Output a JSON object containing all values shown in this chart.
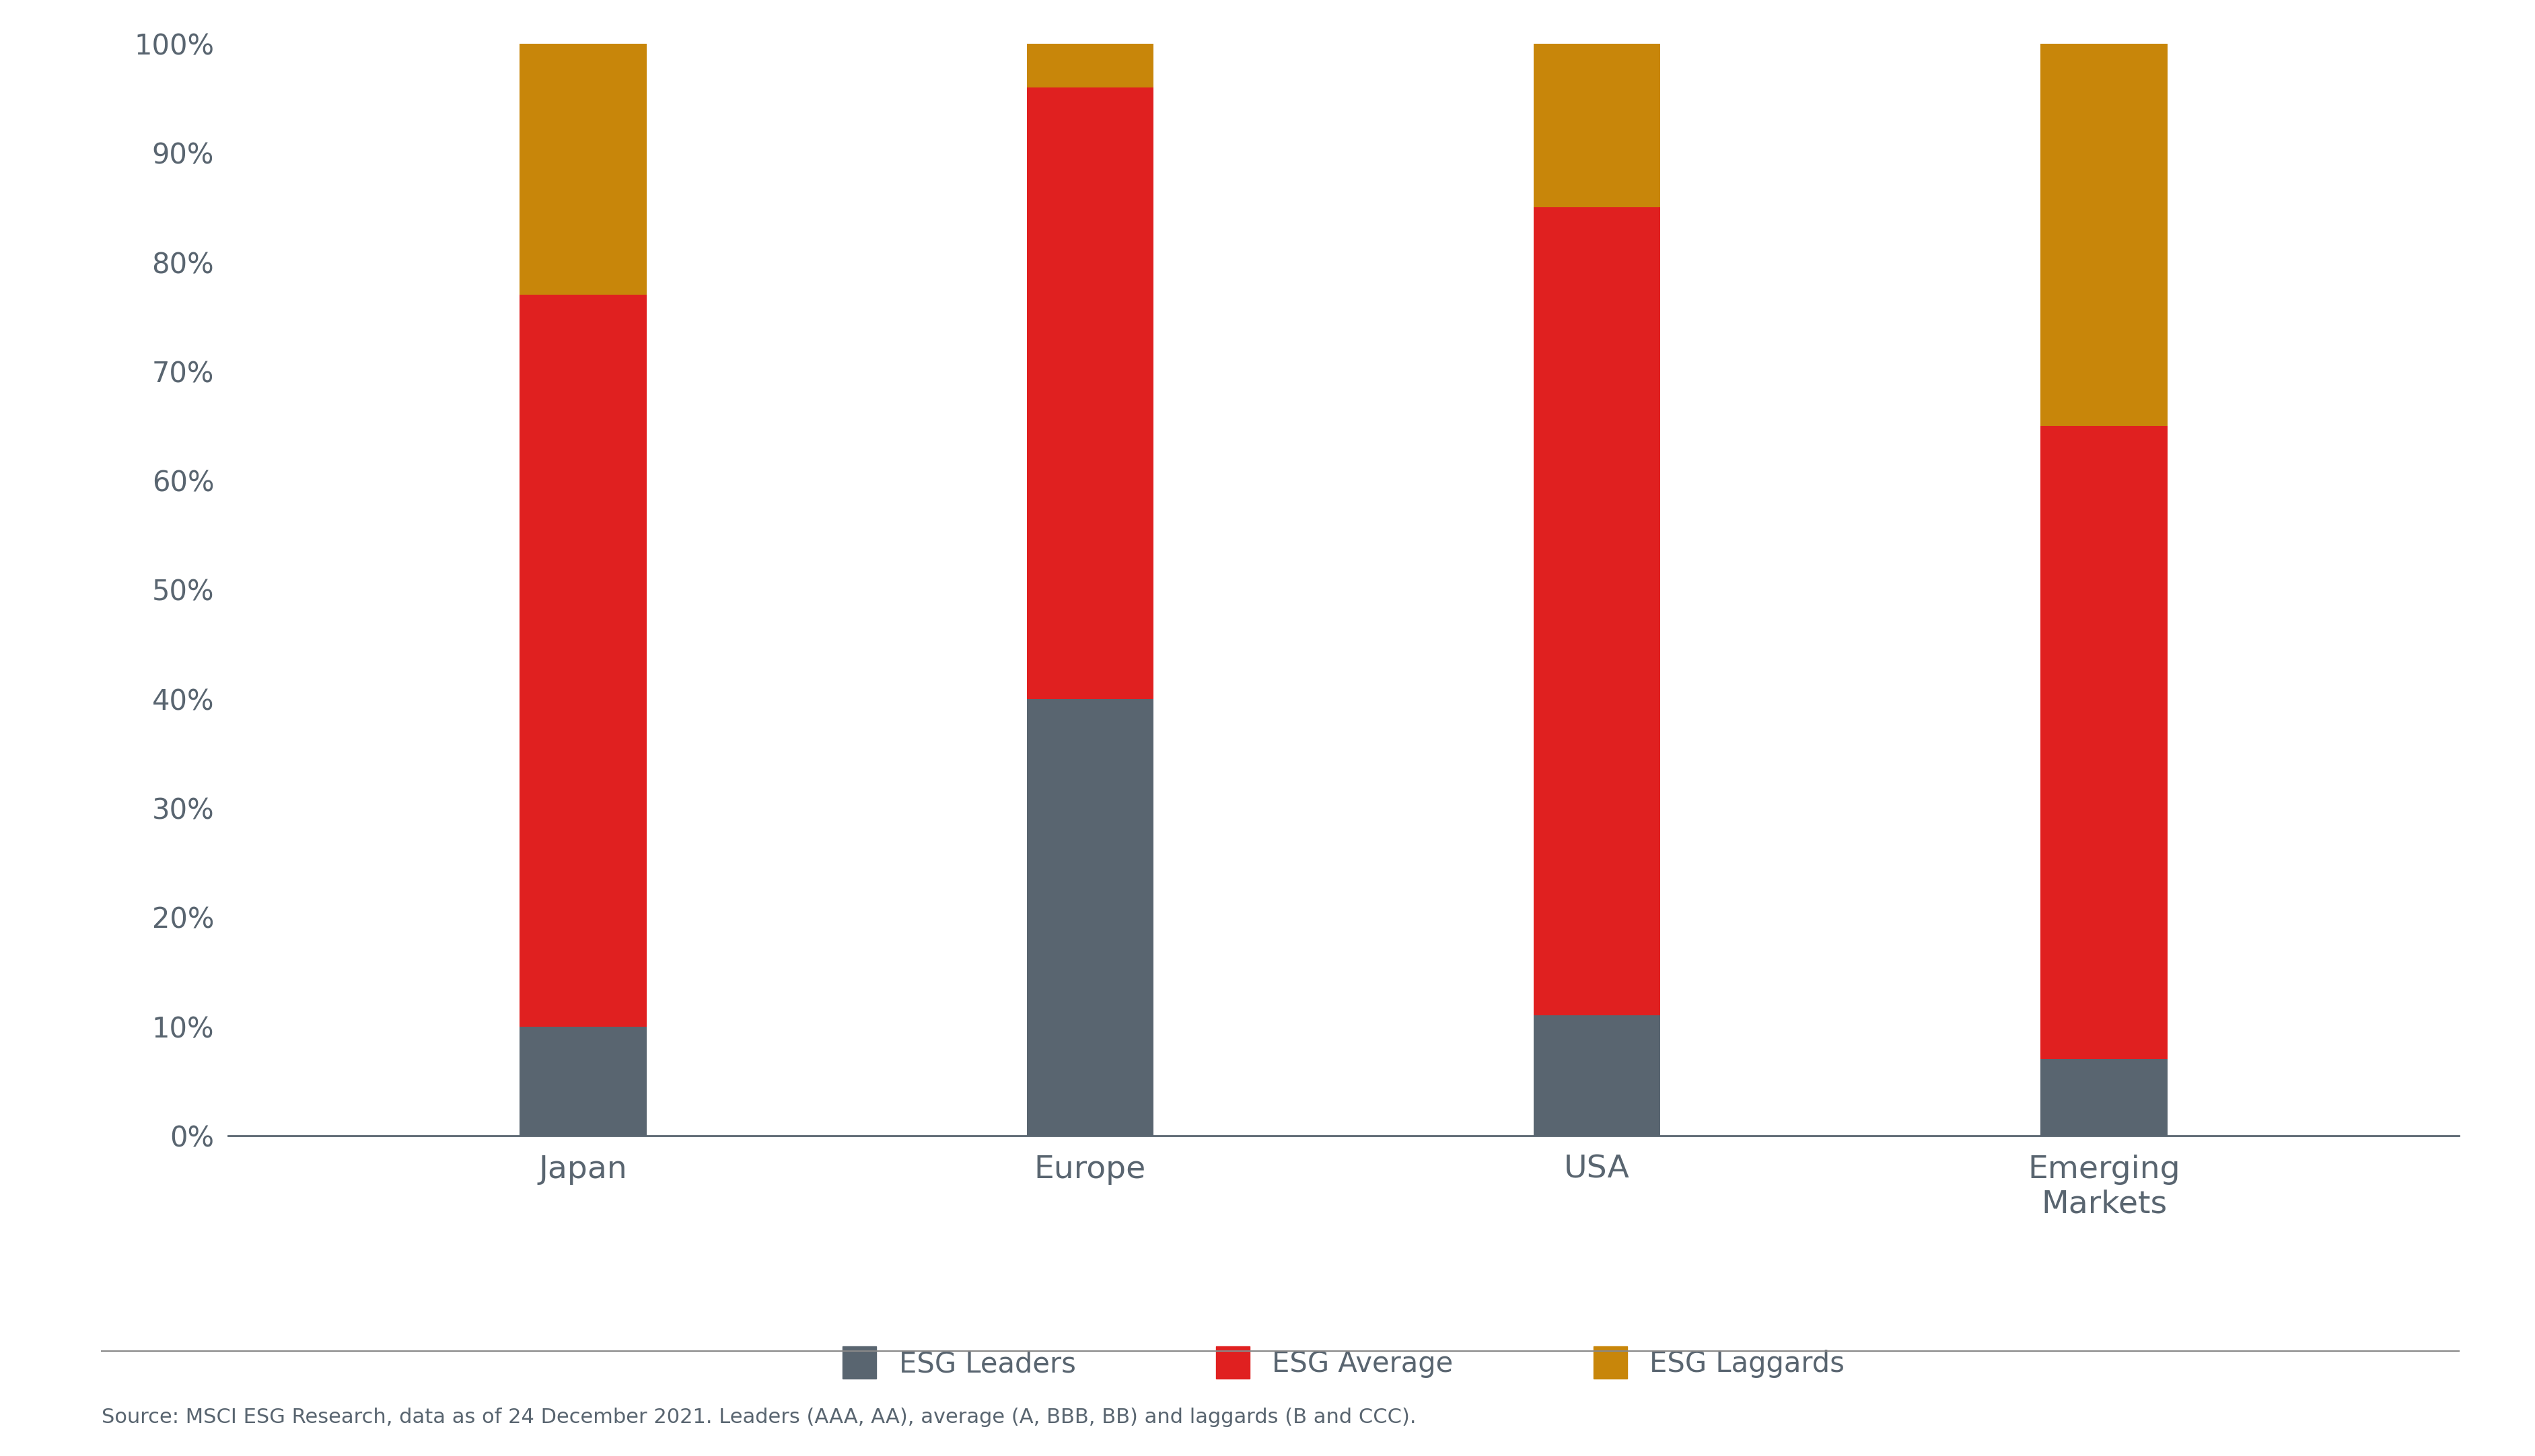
{
  "categories": [
    "Japan",
    "Europe",
    "USA",
    "Emerging\nMarkets"
  ],
  "esg_leaders": [
    10,
    40,
    11,
    7
  ],
  "esg_average": [
    67,
    56,
    74,
    58
  ],
  "esg_laggards": [
    23,
    4,
    15,
    35
  ],
  "color_leaders": "#596570",
  "color_average": "#E02020",
  "color_laggards": "#C8860A",
  "legend_labels": [
    "ESG Leaders",
    "ESG Average",
    "ESG Laggards"
  ],
  "ytick_labels": [
    "0%",
    "10%",
    "20%",
    "30%",
    "40%",
    "50%",
    "60%",
    "70%",
    "80%",
    "90%",
    "100%"
  ],
  "source_text": "Source: MSCI ESG Research, data as of 24 December 2021. Leaders (AAA, AA), average (A, BBB, BB) and laggards (B and CCC).",
  "background_color": "#FFFFFF",
  "axis_color": "#596570",
  "tick_color": "#596570",
  "bar_width": 0.25
}
